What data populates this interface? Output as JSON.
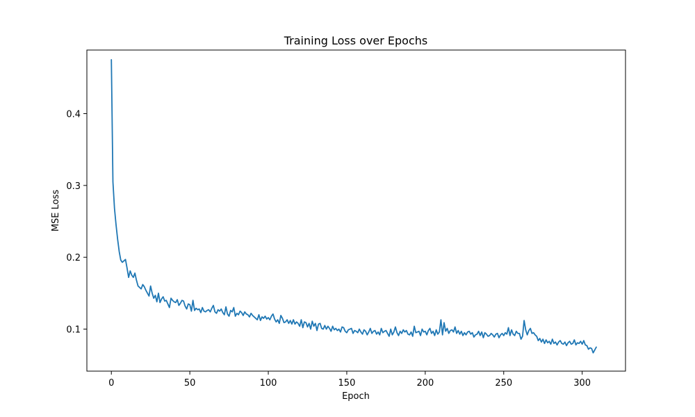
{
  "chart_data": {
    "type": "line",
    "title": "Training Loss over Epochs",
    "xlabel": "Epoch",
    "ylabel": "MSE Loss",
    "xlim": [
      -15.6,
      327.6
    ],
    "ylim": [
      0.0415,
      0.4885
    ],
    "xticks": [
      0,
      50,
      100,
      150,
      200,
      250,
      300
    ],
    "yticks": [
      0.1,
      0.2,
      0.3,
      0.4
    ],
    "xtick_labels": [
      "0",
      "50",
      "100",
      "150",
      "200",
      "250",
      "300"
    ],
    "ytick_labels": [
      "0.1",
      "0.2",
      "0.3",
      "0.4"
    ],
    "grid": false,
    "legend": "none",
    "series": [
      {
        "color": "#1f77b4",
        "x_start": 0,
        "x_step": 1,
        "values": [
          0.475,
          0.305,
          0.268,
          0.245,
          0.225,
          0.208,
          0.196,
          0.193,
          0.195,
          0.197,
          0.185,
          0.172,
          0.181,
          0.175,
          0.172,
          0.178,
          0.168,
          0.16,
          0.158,
          0.156,
          0.162,
          0.159,
          0.154,
          0.15,
          0.146,
          0.16,
          0.15,
          0.143,
          0.147,
          0.138,
          0.15,
          0.137,
          0.142,
          0.145,
          0.139,
          0.14,
          0.135,
          0.13,
          0.143,
          0.14,
          0.138,
          0.137,
          0.141,
          0.133,
          0.136,
          0.14,
          0.139,
          0.132,
          0.128,
          0.135,
          0.134,
          0.125,
          0.14,
          0.126,
          0.129,
          0.127,
          0.128,
          0.123,
          0.13,
          0.125,
          0.124,
          0.126,
          0.127,
          0.124,
          0.129,
          0.133,
          0.124,
          0.122,
          0.127,
          0.125,
          0.128,
          0.123,
          0.12,
          0.131,
          0.121,
          0.118,
          0.126,
          0.124,
          0.13,
          0.118,
          0.122,
          0.12,
          0.125,
          0.123,
          0.119,
          0.124,
          0.121,
          0.12,
          0.117,
          0.122,
          0.119,
          0.117,
          0.115,
          0.113,
          0.12,
          0.112,
          0.117,
          0.115,
          0.118,
          0.114,
          0.116,
          0.113,
          0.118,
          0.121,
          0.114,
          0.11,
          0.113,
          0.108,
          0.119,
          0.115,
          0.109,
          0.11,
          0.113,
          0.108,
          0.112,
          0.107,
          0.113,
          0.107,
          0.11,
          0.108,
          0.104,
          0.113,
          0.102,
          0.11,
          0.109,
          0.103,
          0.108,
          0.1,
          0.111,
          0.104,
          0.108,
          0.098,
          0.107,
          0.108,
          0.101,
          0.1,
          0.105,
          0.1,
          0.104,
          0.101,
          0.097,
          0.104,
          0.099,
          0.101,
          0.098,
          0.1,
          0.096,
          0.103,
          0.102,
          0.097,
          0.095,
          0.099,
          0.1,
          0.101,
          0.094,
          0.098,
          0.097,
          0.095,
          0.1,
          0.096,
          0.093,
          0.099,
          0.097,
          0.092,
          0.096,
          0.101,
          0.094,
          0.097,
          0.098,
          0.093,
          0.096,
          0.092,
          0.101,
          0.095,
          0.097,
          0.098,
          0.094,
          0.09,
          0.1,
          0.092,
          0.096,
          0.103,
          0.095,
          0.091,
          0.097,
          0.094,
          0.099,
          0.096,
          0.098,
          0.093,
          0.092,
          0.096,
          0.09,
          0.104,
          0.095,
          0.096,
          0.097,
          0.091,
          0.1,
          0.096,
          0.097,
          0.092,
          0.098,
          0.101,
          0.094,
          0.097,
          0.091,
          0.099,
          0.093,
          0.096,
          0.113,
          0.092,
          0.109,
          0.097,
          0.101,
          0.094,
          0.098,
          0.099,
          0.096,
          0.103,
          0.094,
          0.098,
          0.093,
          0.097,
          0.091,
          0.095,
          0.092,
          0.096,
          0.097,
          0.093,
          0.095,
          0.089,
          0.092,
          0.093,
          0.097,
          0.091,
          0.096,
          0.088,
          0.095,
          0.093,
          0.09,
          0.091,
          0.094,
          0.092,
          0.089,
          0.093,
          0.094,
          0.088,
          0.092,
          0.094,
          0.091,
          0.095,
          0.093,
          0.102,
          0.091,
          0.099,
          0.093,
          0.091,
          0.097,
          0.094,
          0.094,
          0.086,
          0.09,
          0.112,
          0.099,
          0.092,
          0.098,
          0.101,
          0.094,
          0.095,
          0.092,
          0.09,
          0.084,
          0.087,
          0.082,
          0.086,
          0.08,
          0.085,
          0.081,
          0.083,
          0.079,
          0.086,
          0.08,
          0.082,
          0.078,
          0.082,
          0.084,
          0.08,
          0.079,
          0.082,
          0.077,
          0.081,
          0.083,
          0.079,
          0.08,
          0.085,
          0.078,
          0.081,
          0.08,
          0.083,
          0.079,
          0.084,
          0.078,
          0.077,
          0.072,
          0.074,
          0.073,
          0.067,
          0.071,
          0.075
        ]
      }
    ]
  }
}
